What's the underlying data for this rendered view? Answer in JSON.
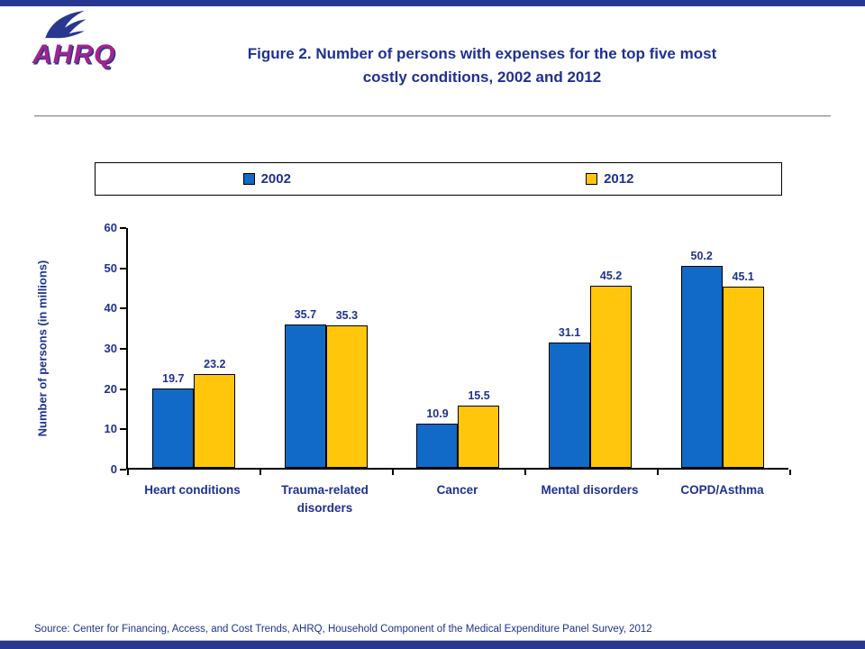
{
  "header": {
    "logo_text": "AHRQ",
    "title_line1": "Figure 2. Number of persons with expenses for the top five most",
    "title_line2": "costly conditions, 2002 and 2012"
  },
  "footer": {
    "source": "Source: Center for Financing, Access, and Cost Trends, AHRQ, Household Component of the Medical Expenditure Panel Survey, 2012"
  },
  "colors": {
    "accent_navy": "#283891",
    "title_text": "#1F3191",
    "logo_magenta": "#A3238E",
    "bar_2002": "#1169C8",
    "bar_2012": "#FFC60B"
  },
  "chart_data": {
    "type": "bar",
    "title": "Figure 2. Number of persons with expenses for the top five most costly conditions, 2002 and 2012",
    "categories": [
      "Heart conditions",
      "Trauma-related disorders",
      "Cancer",
      "Mental disorders",
      "COPD/Asthma"
    ],
    "series": [
      {
        "name": "2002",
        "color": "#1169C8",
        "values": [
          19.7,
          35.7,
          10.9,
          31.1,
          50.2
        ]
      },
      {
        "name": "2012",
        "color": "#FFC60B",
        "values": [
          23.2,
          35.3,
          15.5,
          45.2,
          45.1
        ]
      }
    ],
    "xlabel": "",
    "ylabel": "Number of persons (in millions)",
    "ylim": [
      0,
      60
    ],
    "yticks": [
      0,
      10,
      20,
      30,
      40,
      50,
      60
    ],
    "grid": false,
    "legend_position": "top"
  }
}
